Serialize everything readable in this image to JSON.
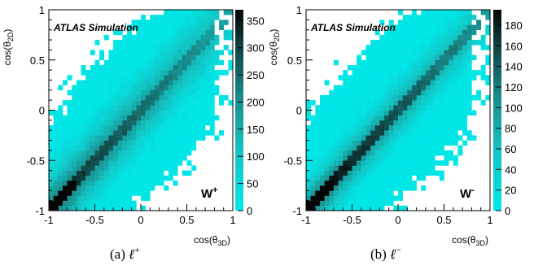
{
  "chart_data": [
    {
      "type": "heatmap",
      "title": "",
      "xlabel": "cos(θ3D)",
      "ylabel": "cos(θ2D)",
      "xlim": [
        -1,
        1
      ],
      "ylim": [
        -1,
        1
      ],
      "xticks": [
        "-1",
        "-0.5",
        "0",
        "0.5",
        "1"
      ],
      "yticks": [
        "-1",
        "-0.5",
        "0",
        "0.5",
        "1"
      ],
      "colorbar_range": [
        0,
        370
      ],
      "colorbar_ticks": [
        "0",
        "50",
        "100",
        "150",
        "200",
        "250",
        "300",
        "350"
      ],
      "annotation": "ATLAS Simulation",
      "label": "W+",
      "caption": "(a) ℓ+",
      "peak_counts": 360,
      "grid": false
    },
    {
      "type": "heatmap",
      "title": "",
      "xlabel": "cos(θ3D)",
      "ylabel": "cos(θ2D)",
      "xlim": [
        -1,
        1
      ],
      "ylim": [
        -1,
        1
      ],
      "xticks": [
        "-1",
        "-0.5",
        "0",
        "0.5",
        "1"
      ],
      "yticks": [
        "-1",
        "-0.5",
        "0",
        "0.5",
        "1"
      ],
      "colorbar_range": [
        0,
        195
      ],
      "colorbar_ticks": [
        "0",
        "20",
        "40",
        "60",
        "80",
        "100",
        "120",
        "140",
        "160",
        "180"
      ],
      "annotation": "ATLAS Simulation",
      "label": "W-",
      "caption": "(b) ℓ−",
      "peak_counts": 190,
      "grid": false
    }
  ],
  "colors": {
    "low": "#00e5e5",
    "mid": "#1ea4a4",
    "high": "#0a0a0a",
    "empty": "#ffffff"
  }
}
